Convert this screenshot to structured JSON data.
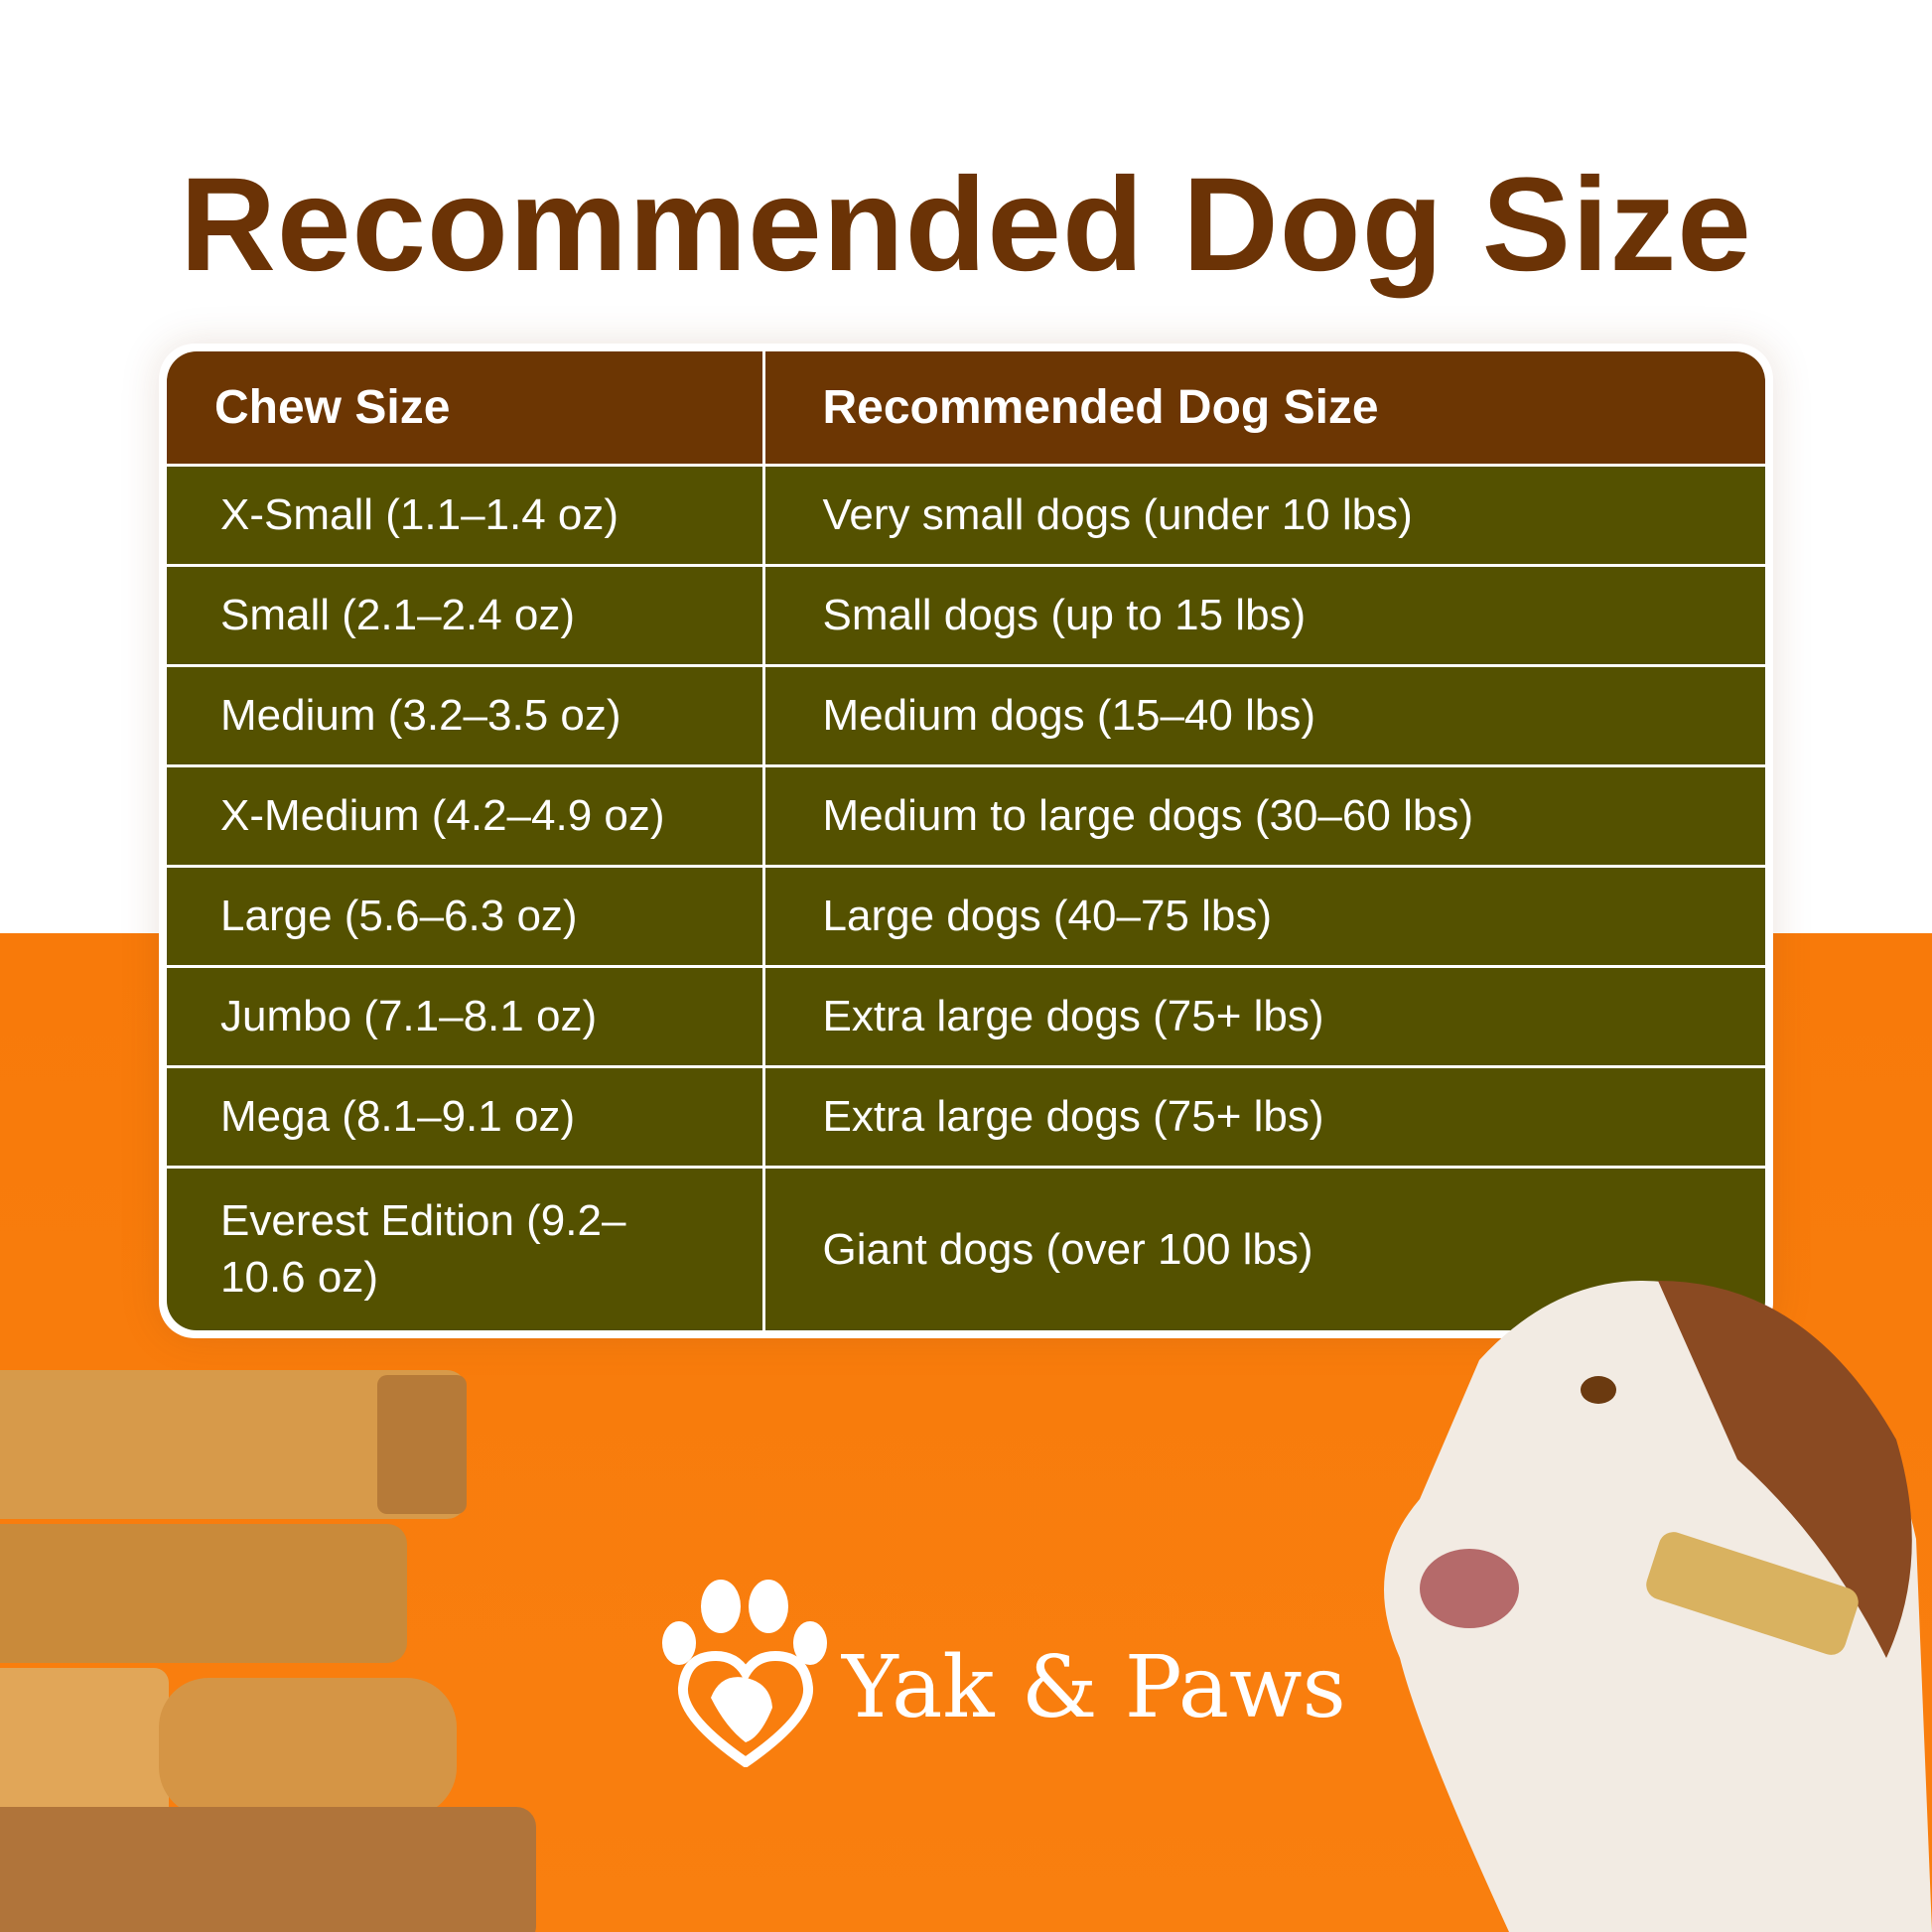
{
  "title": "Recommended Dog Size",
  "table": {
    "headers": [
      "Chew Size",
      "Recommended Dog Size"
    ],
    "rows": [
      [
        "X-Small (1.1–1.4 oz)",
        "Very small dogs (under 10 lbs)"
      ],
      [
        "Small (2.1–2.4 oz)",
        "Small dogs (up to 15 lbs)"
      ],
      [
        "Medium (3.2–3.5 oz)",
        "Medium dogs (15–40 lbs)"
      ],
      [
        "X-Medium (4.2–4.9 oz)",
        "Medium to large dogs (30–60 lbs)"
      ],
      [
        "Large (5.6–6.3 oz)",
        "Large dogs (40–75 lbs)"
      ],
      [
        "Jumbo (7.1–8.1 oz)",
        "Extra large dogs (75+ lbs)"
      ],
      [
        "Mega (8.1–9.1 oz)",
        "Extra large dogs (75+ lbs)"
      ],
      [
        "Everest Edition (9.2–10.6 oz)",
        "Giant dogs (over 100 lbs)"
      ]
    ]
  },
  "brand": {
    "name": "Yak & Paws",
    "icon": "paw-heart-yak-logo"
  },
  "colors": {
    "title": "#6b3306",
    "header": "#6c3603",
    "rows": "#545100",
    "background_bottom": "#f87a0a"
  }
}
